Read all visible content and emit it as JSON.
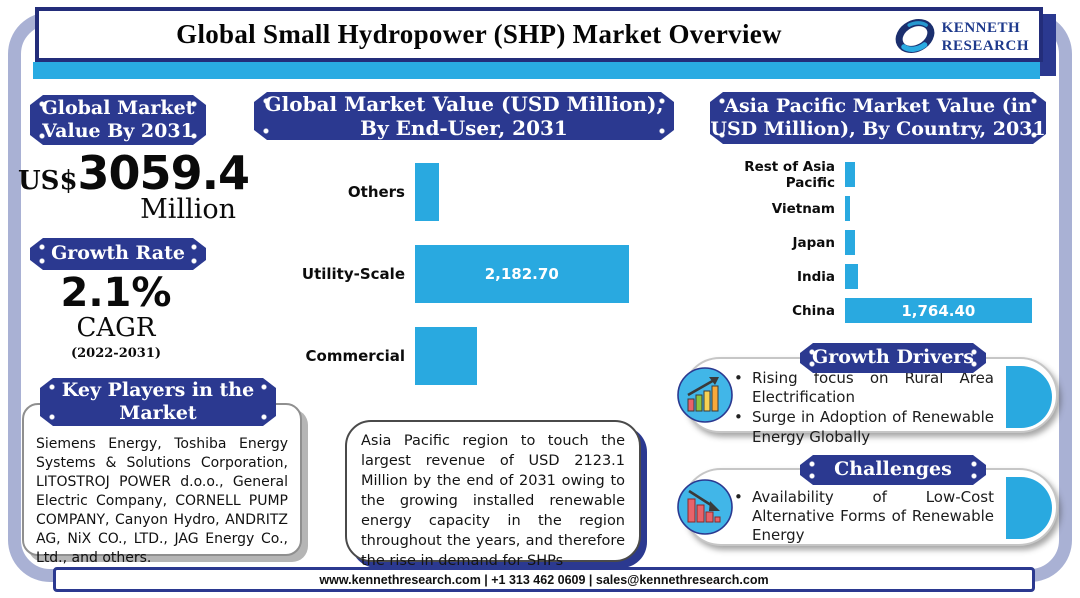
{
  "header": {
    "title": "Global Small Hydropower (SHP) Market Overview",
    "logo": {
      "line1": "KENNETH",
      "line2": "RESEARCH"
    }
  },
  "left": {
    "market_value_badge": "Global Market Value By 2031",
    "value_prefix": "US$",
    "value": "3059.4",
    "value_unit": "Million",
    "growth_badge": "Growth Rate",
    "growth_value": "2.1%",
    "growth_metric": "CAGR",
    "growth_period": "(2022-2031)",
    "key_players_badge": "Key Players in the Market",
    "key_players": "Siemens Energy, Toshiba Energy Systems & Solutions Corporation, LITOSTROJ POWER d.o.o., General Electric Company, CORNELL PUMP COMPANY, Canyon Hydro, ANDRITZ AG, NiX CO., LTD., JAG Energy Co., Ltd., and others."
  },
  "middle": {
    "note": "Asia Pacific region to touch the largest revenue of USD 2123.1 Million by the end of 2031 owing to the growing installed renewable energy capacity in the region throughout the years, and therefore the rise in demand for SHPs"
  },
  "right": {
    "growth_drivers": {
      "title": "Growth Drivers",
      "bullets": [
        "Rising focus on Rural Area Electrification",
        "Surge in Adoption of Renewable Energy Globally"
      ]
    },
    "challenges": {
      "title": "Challenges",
      "bullets": [
        "Availability of Low-Cost Alternative Forms of Renewable Energy"
      ]
    }
  },
  "chart_data": [
    {
      "type": "bar",
      "orientation": "horizontal",
      "title": "Global Market Value (USD Million), By End-User, 2031",
      "categories": [
        "Others",
        "Utility-Scale",
        "Commercial"
      ],
      "values": [
        250,
        2182.7,
        630
      ],
      "value_labels": [
        "",
        "2,182.70",
        ""
      ],
      "xlim": [
        0,
        2300
      ],
      "bar_color": "#29a9e0",
      "grid": false,
      "legend": false
    },
    {
      "type": "bar",
      "orientation": "horizontal",
      "title": "Asia Pacific Market Value (in USD Million), By Country, 2031",
      "categories": [
        "Rest of Asia Pacific",
        "Vietnam",
        "Japan",
        "India",
        "China"
      ],
      "values": [
        95,
        45,
        95,
        125,
        1764.4
      ],
      "value_labels": [
        "",
        "",
        "",
        "",
        "1,764.40"
      ],
      "xlim": [
        0,
        1890
      ],
      "bar_color": "#29a9e0",
      "grid": false,
      "legend": false
    }
  ],
  "footer": {
    "text": "www.kennethresearch.com | +1 313 462 0609 | sales@kennethresearch.com"
  },
  "colors": {
    "navy": "#2b3990",
    "header_border": "#232d7a",
    "cyan": "#29abe2",
    "bar_blue": "#29a9e0",
    "frame": "#a9b1d4"
  }
}
